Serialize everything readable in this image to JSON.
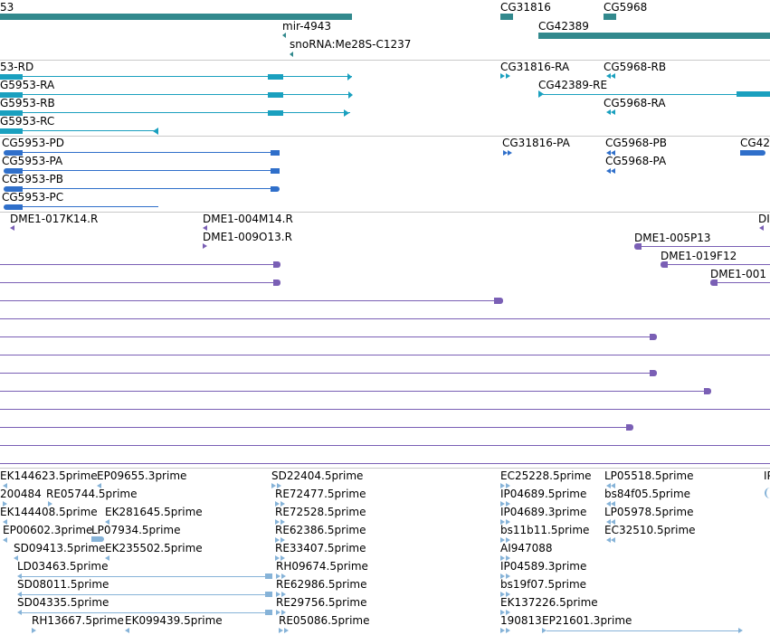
{
  "genes": {
    "gene_left": "53",
    "mir": "mir-4943",
    "snorna": "snoRNA:Me28S-C1237",
    "cg31816": "CG31816",
    "cg5968": "CG5968",
    "cg42389": "CG42389"
  },
  "transcripts": {
    "rd": "53-RD",
    "ra": "G5953-RA",
    "rb": "G5953-RB",
    "rc": "G5953-RC",
    "cg31816_ra": "CG31816-RA",
    "cg5968_rb": "CG5968-RB",
    "cg42389_re": "CG42389-RE",
    "cg5968_ra": "CG5968-RA"
  },
  "proteins": {
    "pd": "CG5953-PD",
    "pa": "CG5953-PA",
    "pb": "CG5953-PB",
    "pc": "CG5953-PC",
    "cg31816_pa": "CG31816-PA",
    "cg5968_pb": "CG5968-PB",
    "cg5968_pa": "CG5968-PA",
    "cg42": "CG42"
  },
  "clones": {
    "c1": "DME1-017K14.R",
    "c2": "DME1-004M14.R",
    "c3": "DME1-009O13.R",
    "c4": "DME1-005P13",
    "c5": "DME1-019F12",
    "c6": "DME1-001",
    "c7": "DI"
  },
  "ests": {
    "e1": "EK144623.5prime",
    "e2": "EP09655.3prime",
    "e3": "SD22404.5prime",
    "e4": "EC25228.5prime",
    "e5": "LP05518.5prime",
    "e6": "IP",
    "e7": "200484",
    "e8": "RE05744.5prime",
    "e9": "RE72477.5prime",
    "e10": "IP04689.5prime",
    "e11": "bs84f05.5prime",
    "e12": "EK144408.5prime",
    "e13": "EK281645.5prime",
    "e14": "RE72528.5prime",
    "e15": "IP04689.3prime",
    "e16": "LP05978.5prime",
    "e17": "EP00602.3prime",
    "e18": "LP07934.5prime",
    "e19": "RE62386.5prime",
    "e20": "bs11b11.5prime",
    "e21": "EC32510.5prime",
    "e22": "SD09413.5prime",
    "e23": "EK235502.5prime",
    "e24": "RE33407.5prime",
    "e25": "AI947088",
    "e26": "LD03463.5prime",
    "e27": "RH09674.5prime",
    "e28": "IP04589.3prime",
    "e29": "SD08011.5prime",
    "e30": "RE62986.5prime",
    "e31": "bs19f07.5prime",
    "e32": "SD04335.5prime",
    "e33": "RE29756.5prime",
    "e34": "EK137226.5prime",
    "e35": "RH13667.5prime",
    "e36": "EK099439.5prime",
    "e37": "RE05086.5prime",
    "e38": "190813",
    "e39": "EP21601.3prime"
  },
  "colors": {
    "gene": "#32898d",
    "transcript": "#1aa0bf",
    "protein": "#2f6fca",
    "clone": "#7a5fb5",
    "est": "#86b3d8"
  }
}
